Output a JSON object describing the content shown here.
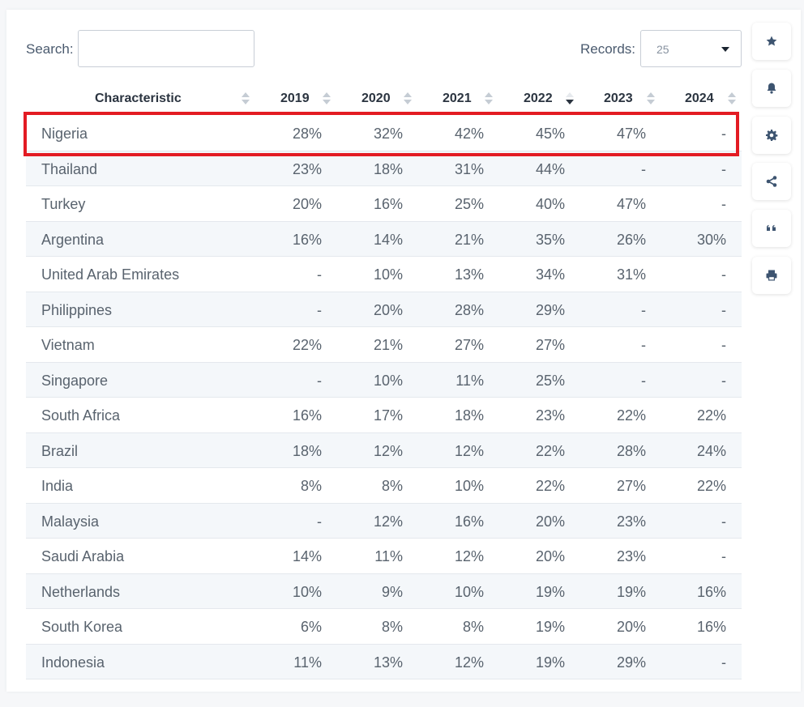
{
  "toolbar": {
    "search_label": "Search:",
    "search_value": "",
    "records_label": "Records:",
    "records_value": "25"
  },
  "table": {
    "headers": [
      "Characteristic",
      "2019",
      "2020",
      "2021",
      "2022",
      "2023",
      "2024"
    ],
    "sorted_column": "2022",
    "sort_direction": "descending",
    "highlighted_row": "Nigeria",
    "highlight_color": "#e31b23",
    "rows": [
      [
        "Nigeria",
        "28%",
        "32%",
        "42%",
        "45%",
        "47%",
        "-"
      ],
      [
        "Thailand",
        "23%",
        "18%",
        "31%",
        "44%",
        "-",
        "-"
      ],
      [
        "Turkey",
        "20%",
        "16%",
        "25%",
        "40%",
        "47%",
        "-"
      ],
      [
        "Argentina",
        "16%",
        "14%",
        "21%",
        "35%",
        "26%",
        "30%"
      ],
      [
        "United Arab Emirates",
        "-",
        "10%",
        "13%",
        "34%",
        "31%",
        "-"
      ],
      [
        "Philippines",
        "-",
        "20%",
        "28%",
        "29%",
        "-",
        "-"
      ],
      [
        "Vietnam",
        "22%",
        "21%",
        "27%",
        "27%",
        "-",
        "-"
      ],
      [
        "Singapore",
        "-",
        "10%",
        "11%",
        "25%",
        "-",
        "-"
      ],
      [
        "South Africa",
        "16%",
        "17%",
        "18%",
        "23%",
        "22%",
        "22%"
      ],
      [
        "Brazil",
        "18%",
        "12%",
        "12%",
        "22%",
        "28%",
        "24%"
      ],
      [
        "India",
        "8%",
        "8%",
        "10%",
        "22%",
        "27%",
        "22%"
      ],
      [
        "Malaysia",
        "-",
        "12%",
        "16%",
        "20%",
        "23%",
        "-"
      ],
      [
        "Saudi Arabia",
        "14%",
        "11%",
        "12%",
        "20%",
        "23%",
        "-"
      ],
      [
        "Netherlands",
        "10%",
        "9%",
        "10%",
        "19%",
        "19%",
        "16%"
      ],
      [
        "South Korea",
        "6%",
        "8%",
        "8%",
        "19%",
        "20%",
        "16%"
      ],
      [
        "Indonesia",
        "11%",
        "13%",
        "12%",
        "19%",
        "29%",
        "-"
      ]
    ]
  },
  "side_actions": [
    {
      "icon": "star-icon",
      "name": "favorite-button"
    },
    {
      "icon": "bell-icon",
      "name": "notification-button"
    },
    {
      "icon": "gear-icon",
      "name": "settings-button"
    },
    {
      "icon": "share-icon",
      "name": "share-button"
    },
    {
      "icon": "quote-icon",
      "name": "cite-button"
    },
    {
      "icon": "print-icon",
      "name": "print-button"
    }
  ],
  "colors": {
    "icon": "#3d5470",
    "alt_row": "#f4f7fa"
  }
}
